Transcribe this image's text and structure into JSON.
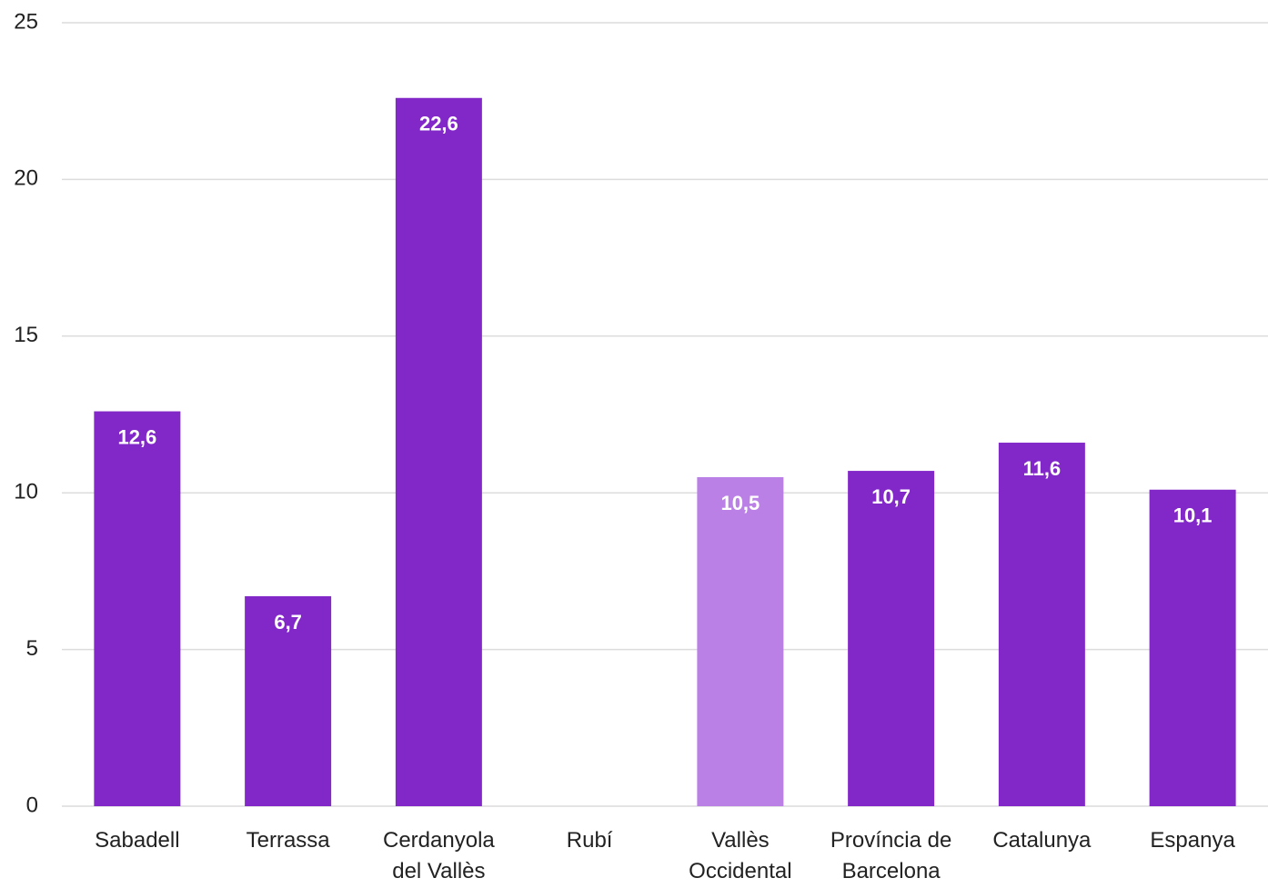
{
  "chart_data": {
    "type": "bar",
    "categories": [
      "Sabadell",
      "Terrassa",
      "Cerdanyola del Vallès",
      "Rubí",
      "Vallès Occidental",
      "Província de Barcelona",
      "Catalunya",
      "Espanya"
    ],
    "values": [
      12.6,
      6.7,
      22.6,
      null,
      10.5,
      10.7,
      11.6,
      10.1
    ],
    "value_labels": [
      "12,6",
      "6,7",
      "22,6",
      null,
      "10,5",
      "10,7",
      "11,6",
      "10,1"
    ],
    "colors": [
      "#8228c8",
      "#8228c8",
      "#8228c8",
      "#8228c8",
      "#bb80e6",
      "#8228c8",
      "#8228c8",
      "#8228c8"
    ],
    "ylim": [
      0,
      25
    ],
    "yticks": [
      0,
      5,
      10,
      15,
      20,
      25
    ],
    "grid": true
  }
}
